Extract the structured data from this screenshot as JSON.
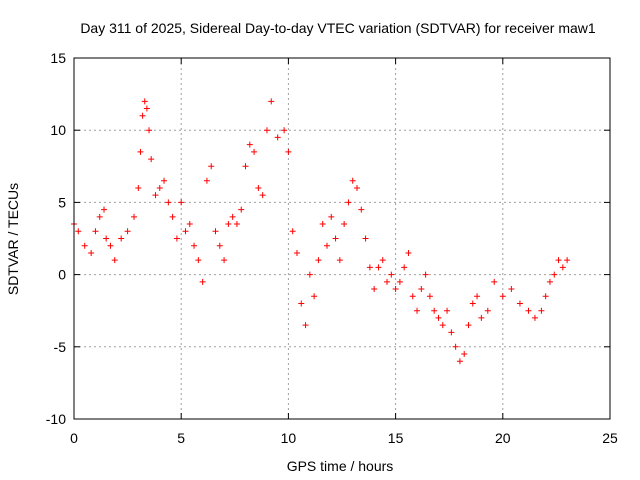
{
  "chart_data": {
    "type": "scatter",
    "title": "Day 311 of 2025, Sidereal Day-to-day VTEC variation (SDTVAR) for receiver maw1",
    "xlabel": "GPS time / hours",
    "ylabel": "SDTVAR / TECUs",
    "xlim": [
      0,
      25
    ],
    "ylim": [
      -10,
      15
    ],
    "x_ticks": [
      0,
      5,
      10,
      15,
      20,
      25
    ],
    "y_ticks": [
      -10,
      -5,
      0,
      5,
      10,
      15
    ],
    "x_tick_labels": [
      "0",
      "5",
      "10",
      "15",
      "20",
      "25"
    ],
    "y_tick_labels": [
      "-10",
      "-5",
      "0",
      "5",
      "10",
      "15"
    ],
    "grid": true,
    "marker": "+",
    "color": "#ff0000",
    "series": [
      {
        "name": "SDTVAR",
        "x": [
          0.0,
          0.2,
          0.5,
          0.8,
          1.0,
          1.2,
          1.4,
          1.5,
          1.7,
          1.9,
          2.2,
          2.5,
          2.8,
          3.0,
          3.1,
          3.2,
          3.3,
          3.4,
          3.5,
          3.6,
          3.8,
          4.0,
          4.2,
          4.4,
          4.6,
          4.8,
          5.0,
          5.2,
          5.4,
          5.6,
          5.8,
          6.0,
          6.2,
          6.4,
          6.6,
          6.8,
          7.0,
          7.2,
          7.4,
          7.6,
          7.8,
          8.0,
          8.2,
          8.4,
          8.6,
          8.8,
          9.0,
          9.2,
          9.5,
          9.8,
          10.0,
          10.2,
          10.4,
          10.6,
          10.8,
          11.0,
          11.2,
          11.4,
          11.6,
          11.8,
          12.0,
          12.2,
          12.4,
          12.6,
          12.8,
          13.0,
          13.2,
          13.4,
          13.6,
          13.8,
          14.0,
          14.2,
          14.4,
          14.6,
          14.8,
          15.0,
          15.2,
          15.4,
          15.6,
          15.8,
          16.0,
          16.2,
          16.4,
          16.6,
          16.8,
          17.0,
          17.2,
          17.4,
          17.6,
          17.8,
          18.0,
          18.2,
          18.4,
          18.6,
          18.8,
          19.0,
          19.3,
          19.6,
          20.0,
          20.4,
          20.8,
          21.2,
          21.5,
          21.8,
          22.0,
          22.2,
          22.4,
          22.6,
          22.8,
          23.0
        ],
        "y": [
          3.5,
          3.0,
          2.0,
          1.5,
          3.0,
          4.0,
          4.5,
          2.5,
          2.0,
          1.0,
          2.5,
          3.0,
          4.0,
          6.0,
          8.5,
          11.0,
          12.0,
          11.5,
          10.0,
          8.0,
          5.5,
          6.0,
          6.5,
          5.0,
          4.0,
          2.5,
          5.0,
          3.0,
          3.5,
          2.0,
          1.0,
          -0.5,
          6.5,
          7.5,
          3.0,
          2.0,
          1.0,
          3.5,
          4.0,
          3.5,
          4.5,
          7.5,
          9.0,
          8.5,
          6.0,
          5.5,
          10.0,
          12.0,
          9.5,
          10.0,
          8.5,
          3.0,
          1.5,
          -2.0,
          -3.5,
          0.0,
          -1.5,
          1.0,
          3.5,
          2.0,
          4.0,
          2.5,
          1.0,
          3.5,
          5.0,
          6.5,
          6.0,
          4.5,
          2.5,
          0.5,
          -1.0,
          0.5,
          1.0,
          -0.5,
          0.0,
          -1.0,
          -0.5,
          0.5,
          1.5,
          -1.5,
          -2.5,
          -1.0,
          0.0,
          -1.5,
          -2.5,
          -3.0,
          -3.5,
          -2.5,
          -4.0,
          -5.0,
          -6.0,
          -5.5,
          -3.5,
          -2.0,
          -1.5,
          -3.0,
          -2.5,
          -0.5,
          -1.5,
          -1.0,
          -2.0,
          -2.5,
          -3.0,
          -2.5,
          -1.5,
          -0.5,
          0.0,
          1.0,
          0.5,
          1.0
        ]
      }
    ]
  }
}
